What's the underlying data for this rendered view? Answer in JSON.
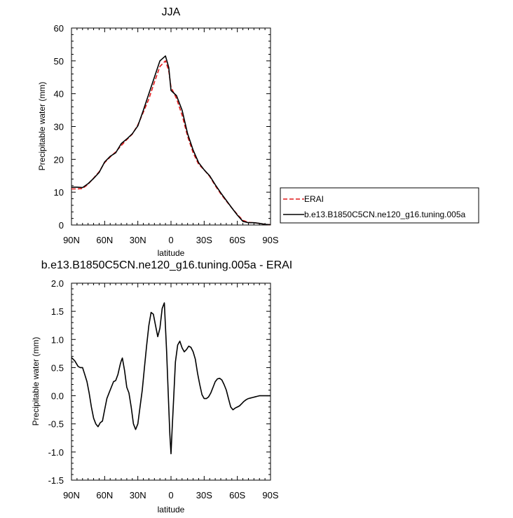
{
  "chart_data": [
    {
      "type": "line",
      "title": "JJA",
      "xlabel": "latitude",
      "ylabel": "Precipitable water (mm)",
      "xlim": [
        90,
        -90
      ],
      "ylim": [
        0,
        60
      ],
      "x_ticks": [
        90,
        60,
        30,
        0,
        -30,
        -60,
        -90
      ],
      "x_tick_labels": [
        "90N",
        "60N",
        "30N",
        "0",
        "30S",
        "60S",
        "90S"
      ],
      "y_ticks": [
        0,
        10,
        20,
        30,
        40,
        50,
        60
      ],
      "y_tick_labels": [
        "0",
        "10",
        "20",
        "30",
        "40",
        "50",
        "60"
      ],
      "legend": "outside-right",
      "series": [
        {
          "name": "ERAI",
          "color": "#e0191a",
          "dash": "dashed",
          "x": [
            90,
            85,
            80,
            75,
            70,
            65,
            60,
            55,
            50,
            45,
            40,
            35,
            30,
            25,
            20,
            15,
            10,
            5,
            2,
            0,
            -5,
            -10,
            -15,
            -20,
            -25,
            -30,
            -35,
            -40,
            -45,
            -50,
            -55,
            -60,
            -65,
            -70,
            -75,
            -80,
            -85,
            -90
          ],
          "y": [
            11.0,
            11.0,
            11.1,
            12.4,
            14.3,
            16.2,
            19.0,
            20.7,
            22.3,
            24.2,
            26.0,
            27.7,
            30.5,
            34.4,
            38.4,
            43.5,
            48.3,
            50.0,
            47.0,
            42.0,
            38.5,
            33.5,
            27.0,
            22.0,
            18.5,
            16.8,
            14.8,
            12.0,
            9.5,
            7.3,
            5.2,
            3.2,
            1.4,
            0.8,
            0.7,
            0.5,
            0.2,
            0.1
          ]
        },
        {
          "name": "b.e13.B1850C5CN.ne120_g16.tuning.005a",
          "color": "#000000",
          "dash": "solid",
          "x": [
            90,
            85,
            80,
            75,
            70,
            65,
            60,
            55,
            50,
            45,
            40,
            35,
            30,
            25,
            20,
            15,
            10,
            5,
            2,
            0,
            -5,
            -10,
            -15,
            -20,
            -25,
            -30,
            -35,
            -40,
            -45,
            -50,
            -55,
            -60,
            -65,
            -70,
            -75,
            -80,
            -85,
            -90
          ],
          "y": [
            11.5,
            11.5,
            11.4,
            12.6,
            14.2,
            16.0,
            19.2,
            20.9,
            22.0,
            24.8,
            26.2,
            27.8,
            30.2,
            35.0,
            40.0,
            45.0,
            50.0,
            51.5,
            48.0,
            41.0,
            39.4,
            35.0,
            27.8,
            22.8,
            19.0,
            16.8,
            15.0,
            12.3,
            9.8,
            7.5,
            5.2,
            3.0,
            1.1,
            0.7,
            0.7,
            0.5,
            0.2,
            0.1
          ]
        }
      ]
    },
    {
      "type": "line",
      "title": "b.e13.B1850C5CN.ne120_g16.tuning.005a - ERAI",
      "xlabel": "latitude",
      "ylabel": "Precipitable water (mm)",
      "xlim": [
        90,
        -90
      ],
      "ylim": [
        -1.5,
        2.0
      ],
      "x_ticks": [
        90,
        60,
        30,
        0,
        -30,
        -60,
        -90
      ],
      "x_tick_labels": [
        "90N",
        "60N",
        "30N",
        "0",
        "30S",
        "60S",
        "90S"
      ],
      "y_ticks": [
        -1.5,
        -1.0,
        -0.5,
        0.0,
        0.5,
        1.0,
        1.5,
        2.0
      ],
      "y_tick_labels": [
        "-1.5",
        "-1.0",
        "-0.5",
        "0.0",
        "0.5",
        "1.0",
        "1.5",
        "2.0"
      ],
      "series": [
        {
          "color": "#000000",
          "dash": "solid",
          "x": [
            90,
            87,
            84,
            82,
            80,
            78,
            76,
            74,
            72,
            70,
            68,
            66,
            64,
            62,
            60,
            58,
            56,
            54,
            52,
            50,
            48,
            46,
            45,
            44,
            42,
            40,
            38,
            36,
            34,
            32,
            30,
            28,
            26,
            24,
            22,
            20,
            18,
            16,
            14,
            12,
            10,
            8,
            6,
            4,
            2,
            1,
            0,
            -1,
            -2,
            -4,
            -6,
            -8,
            -10,
            -12,
            -14,
            -16,
            -18,
            -20,
            -22,
            -24,
            -26,
            -28,
            -30,
            -32,
            -34,
            -36,
            -38,
            -40,
            -42,
            -44,
            -46,
            -48,
            -50,
            -52,
            -54,
            -56,
            -58,
            -60,
            -62,
            -64,
            -66,
            -68,
            -70,
            -72,
            -74,
            -76,
            -78,
            -80,
            -82,
            -84,
            -86,
            -88,
            -90
          ],
          "y": [
            0.68,
            0.62,
            0.52,
            0.5,
            0.5,
            0.38,
            0.25,
            0.05,
            -0.2,
            -0.4,
            -0.5,
            -0.55,
            -0.48,
            -0.45,
            -0.25,
            -0.05,
            0.05,
            0.15,
            0.25,
            0.27,
            0.38,
            0.55,
            0.62,
            0.67,
            0.45,
            0.15,
            0.05,
            -0.2,
            -0.5,
            -0.6,
            -0.5,
            -0.2,
            0.1,
            0.5,
            0.9,
            1.25,
            1.48,
            1.45,
            1.25,
            1.05,
            1.2,
            1.55,
            1.65,
            0.8,
            -0.2,
            -0.7,
            -1.03,
            -0.6,
            -0.2,
            0.6,
            0.9,
            0.97,
            0.85,
            0.78,
            0.82,
            0.88,
            0.86,
            0.78,
            0.65,
            0.4,
            0.2,
            0.02,
            -0.05,
            -0.05,
            -0.02,
            0.05,
            0.15,
            0.25,
            0.3,
            0.31,
            0.28,
            0.2,
            0.1,
            -0.05,
            -0.2,
            -0.25,
            -0.22,
            -0.2,
            -0.18,
            -0.14,
            -0.1,
            -0.07,
            -0.05,
            -0.04,
            -0.03,
            -0.02,
            -0.01,
            0.0,
            0.0,
            0.0,
            0.0,
            0.0,
            0.0
          ]
        }
      ]
    }
  ]
}
